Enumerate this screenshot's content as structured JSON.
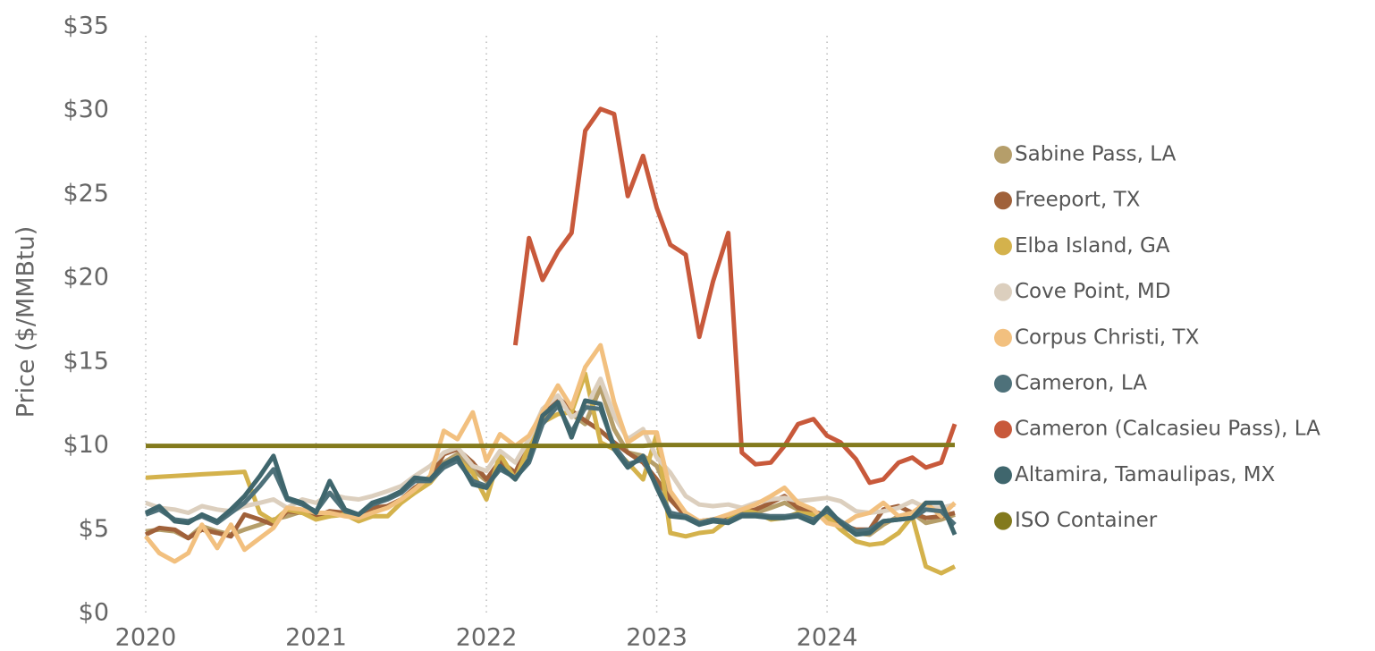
{
  "chart_data": {
    "type": "line",
    "y_label": "Price ($/MMBtu)",
    "x": [
      2020,
      2020.08,
      2020.17,
      2020.25,
      2020.33,
      2020.42,
      2020.5,
      2020.58,
      2020.67,
      2020.75,
      2020.83,
      2020.92,
      2021,
      2021.08,
      2021.17,
      2021.25,
      2021.33,
      2021.42,
      2021.5,
      2021.58,
      2021.67,
      2021.75,
      2021.83,
      2021.92,
      2022,
      2022.08,
      2022.17,
      2022.25,
      2022.33,
      2022.42,
      2022.5,
      2022.58,
      2022.67,
      2022.75,
      2022.83,
      2022.92,
      2023,
      2023.08,
      2023.17,
      2023.25,
      2023.33,
      2023.42,
      2023.5,
      2023.58,
      2023.67,
      2023.75,
      2023.83,
      2023.92,
      2024,
      2024.08,
      2024.17,
      2024.25,
      2024.33,
      2024.42,
      2024.5,
      2024.58,
      2024.67,
      2024.75
    ],
    "xlim": [
      2020,
      2024.75
    ],
    "xticks": [
      2020,
      2021,
      2022,
      2023,
      2024
    ],
    "ylim": [
      0,
      35
    ],
    "yticks": [
      {
        "value": 0,
        "label": "$0"
      },
      {
        "value": 5,
        "label": "$5"
      },
      {
        "value": 10,
        "label": "$10"
      },
      {
        "value": 15,
        "label": "$15"
      },
      {
        "value": 20,
        "label": "$20"
      },
      {
        "value": 25,
        "label": "$25"
      },
      {
        "value": 30,
        "label": "$30"
      },
      {
        "value": 35,
        "label": "$35"
      }
    ],
    "x_grid": true,
    "legend": "right",
    "series": [
      {
        "name": "Sabine Pass, LA",
        "color": "#b59e6a",
        "values": [
          4.9,
          5.0,
          4.9,
          4.5,
          5.2,
          4.9,
          4.7,
          5.0,
          5.3,
          5.6,
          5.8,
          6.1,
          5.8,
          5.8,
          6.0,
          5.7,
          6.1,
          6.4,
          6.8,
          7.4,
          8.0,
          9.0,
          9.5,
          8.6,
          7.9,
          9.0,
          8.2,
          9.8,
          11.5,
          12.8,
          11.9,
          11.3,
          13.5,
          11.0,
          9.6,
          9.4,
          8.8,
          7.0,
          5.9,
          5.5,
          5.6,
          5.8,
          5.9,
          6.0,
          6.3,
          6.6,
          6.2,
          6.0,
          5.7,
          5.2,
          4.8,
          4.7,
          5.3,
          5.8,
          6.0,
          5.4,
          5.6,
          5.9
        ]
      },
      {
        "name": "Freeport, TX",
        "color": "#a0613a",
        "values": [
          4.7,
          5.1,
          5.0,
          4.5,
          5.0,
          4.8,
          4.6,
          5.9,
          5.6,
          5.3,
          6.1,
          6.0,
          5.8,
          6.1,
          6.0,
          5.6,
          6.3,
          6.4,
          6.8,
          7.5,
          8.1,
          9.5,
          9.8,
          9.0,
          8.0,
          9.1,
          8.4,
          10.2,
          11.9,
          12.9,
          12.1,
          11.5,
          10.9,
          10.2,
          9.6,
          9.0,
          8.0,
          6.8,
          5.8,
          5.5,
          5.6,
          5.7,
          6.0,
          6.2,
          6.6,
          7.0,
          6.3,
          6.1,
          5.8,
          5.3,
          5.0,
          5.0,
          6.2,
          6.4,
          6.0,
          5.7,
          5.8,
          6.0
        ]
      },
      {
        "name": "Elba Island, GA",
        "color": "#d4b24c",
        "values": [
          8.1,
          8.15,
          8.2,
          8.25,
          8.3,
          8.35,
          8.4,
          8.45,
          6.0,
          5.5,
          6.2,
          6.0,
          5.6,
          5.8,
          5.9,
          5.5,
          5.8,
          5.8,
          6.6,
          7.2,
          7.8,
          8.8,
          9.2,
          8.4,
          6.8,
          9.5,
          8.0,
          10.0,
          11.4,
          11.9,
          12.0,
          14.3,
          10.2,
          9.8,
          9.0,
          8.0,
          10.7,
          4.8,
          4.6,
          4.8,
          4.9,
          5.6,
          6.2,
          6.0,
          5.6,
          5.7,
          6.0,
          5.9,
          5.8,
          5.0,
          4.3,
          4.1,
          4.2,
          4.8,
          5.8,
          2.8,
          2.4,
          2.8
        ]
      },
      {
        "name": "Cove Point, MD",
        "color": "#dccfbe",
        "values": [
          6.6,
          6.3,
          6.2,
          6.0,
          6.4,
          6.2,
          6.1,
          6.4,
          6.6,
          6.8,
          6.3,
          6.8,
          6.6,
          7.1,
          6.9,
          6.8,
          7.0,
          7.3,
          7.6,
          8.2,
          8.8,
          9.6,
          9.9,
          8.8,
          8.5,
          9.7,
          9.0,
          10.4,
          12.2,
          13.0,
          11.7,
          12.2,
          14.0,
          11.8,
          10.4,
          11.0,
          9.3,
          8.4,
          7.0,
          6.5,
          6.4,
          6.5,
          6.3,
          6.6,
          6.8,
          6.9,
          6.7,
          6.8,
          6.9,
          6.7,
          6.1,
          6.0,
          6.1,
          6.3,
          6.7,
          6.3,
          6.3,
          6.5
        ]
      },
      {
        "name": "Corpus Christi, TX",
        "color": "#f2c07f",
        "values": [
          4.6,
          3.6,
          3.1,
          3.6,
          5.3,
          3.9,
          5.3,
          3.8,
          4.5,
          5.1,
          6.3,
          6.2,
          6.0,
          6.0,
          5.8,
          5.7,
          6.0,
          6.3,
          6.8,
          7.4,
          8.2,
          10.9,
          10.4,
          12.0,
          9.1,
          10.7,
          10.0,
          10.6,
          12.0,
          13.6,
          12.3,
          14.7,
          16.0,
          12.6,
          10.2,
          10.8,
          10.8,
          7.3,
          6.0,
          5.5,
          5.6,
          5.9,
          6.2,
          6.5,
          7.0,
          7.5,
          6.6,
          6.2,
          5.4,
          5.2,
          5.8,
          6.0,
          6.6,
          5.8,
          6.0,
          6.6,
          5.8,
          6.6
        ]
      },
      {
        "name": "Cameron, LA",
        "color": "#4e717a",
        "values": [
          5.9,
          6.2,
          5.6,
          5.5,
          5.8,
          5.4,
          6.0,
          6.6,
          7.6,
          8.6,
          6.8,
          6.5,
          6.1,
          7.2,
          6.1,
          5.9,
          6.5,
          6.8,
          7.2,
          7.9,
          7.9,
          8.7,
          9.1,
          7.9,
          7.6,
          8.6,
          8.1,
          9.0,
          11.3,
          12.4,
          10.8,
          12.3,
          12.2,
          10.0,
          8.9,
          9.2,
          7.6,
          6.0,
          5.8,
          5.4,
          5.6,
          5.5,
          5.9,
          5.9,
          5.8,
          5.8,
          5.9,
          5.6,
          6.1,
          5.5,
          4.9,
          5.0,
          5.5,
          5.6,
          5.7,
          6.2,
          6.1,
          5.3
        ]
      },
      {
        "name": "Cameron (Calcasieu Pass), LA",
        "color": "#c8593b",
        "values": [
          null,
          null,
          null,
          null,
          null,
          null,
          null,
          null,
          null,
          null,
          null,
          null,
          null,
          null,
          null,
          null,
          null,
          null,
          null,
          null,
          null,
          null,
          null,
          null,
          null,
          null,
          16.0,
          22.4,
          19.9,
          21.6,
          22.7,
          28.8,
          30.1,
          29.8,
          24.9,
          27.3,
          24.2,
          22.0,
          21.4,
          16.5,
          19.8,
          22.7,
          9.6,
          8.9,
          9.0,
          10.0,
          11.3,
          11.6,
          10.6,
          10.2,
          9.2,
          7.8,
          8.0,
          9.0,
          9.3,
          8.7,
          9.0,
          11.3
        ]
      },
      {
        "name": "Altamira, Tamaulipas, MX",
        "color": "#3f666d",
        "values": [
          6.0,
          6.4,
          5.5,
          5.4,
          5.9,
          5.5,
          6.2,
          7.0,
          8.2,
          9.4,
          6.9,
          6.6,
          6.0,
          7.9,
          6.2,
          5.9,
          6.6,
          6.9,
          7.3,
          8.1,
          8.0,
          8.9,
          9.3,
          7.7,
          7.5,
          8.8,
          8.0,
          9.2,
          11.8,
          12.6,
          10.5,
          12.7,
          12.5,
          9.8,
          8.7,
          9.4,
          7.5,
          5.8,
          5.7,
          5.3,
          5.5,
          5.4,
          5.8,
          5.8,
          5.7,
          5.7,
          5.8,
          5.4,
          6.3,
          5.4,
          4.7,
          4.8,
          5.5,
          5.6,
          5.7,
          6.6,
          6.6,
          4.7
        ]
      },
      {
        "name": "ISO Container",
        "color": "#837a1d",
        "values": [
          10.0,
          10.0,
          10.0,
          10.0,
          10.0,
          10.0,
          10.0,
          10.0,
          10.0,
          10.0,
          10.0,
          10.0,
          10.0,
          10.0,
          10.0,
          10.0,
          10.0,
          10.0,
          10.0,
          10.0,
          10.0,
          10.0,
          10.0,
          10.0,
          10.0,
          10.0,
          10.0,
          10.0,
          10.0,
          10.0,
          10.0,
          10.0,
          10.0,
          10.0,
          10.0,
          10.0,
          10.05,
          10.05,
          10.05,
          10.05,
          10.05,
          10.05,
          10.05,
          10.05,
          10.05,
          10.05,
          10.05,
          10.05,
          10.05,
          10.05,
          10.05,
          10.05,
          10.05,
          10.05,
          10.05,
          10.05,
          10.05,
          10.05
        ]
      }
    ]
  }
}
